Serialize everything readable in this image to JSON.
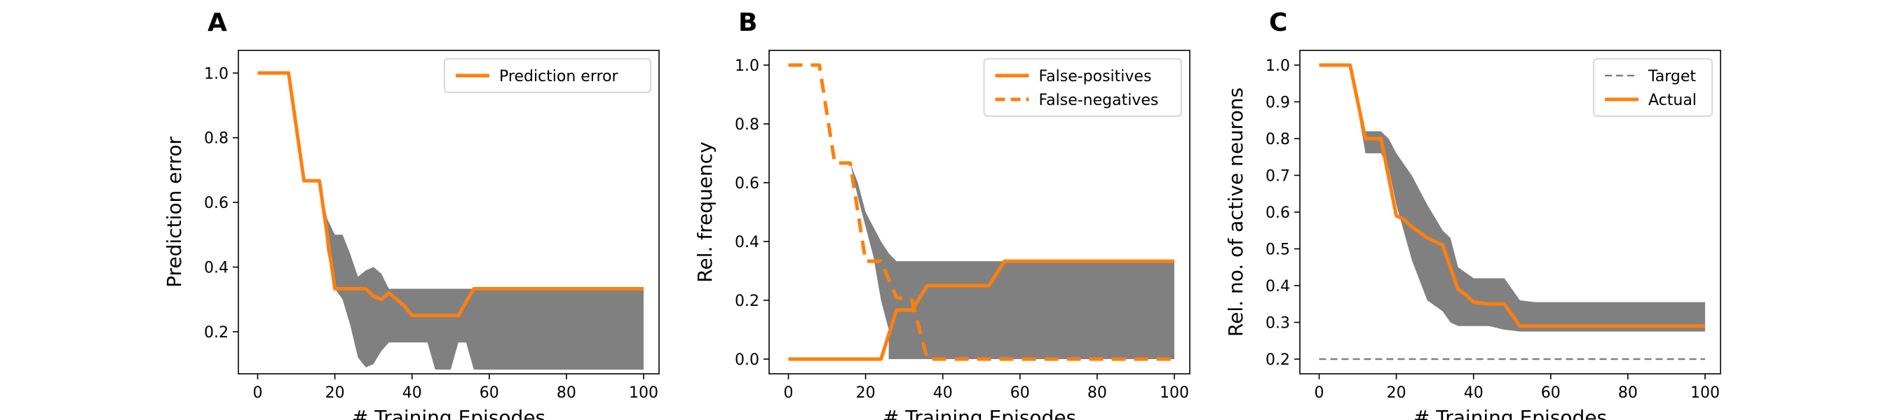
{
  "colors": {
    "series": "#ff7f0e",
    "band": "#808080",
    "target": "#808080",
    "axis": "#000000"
  },
  "chart_data": [
    {
      "type": "line",
      "panel_label": "A",
      "xlabel": "# Training Episodes",
      "ylabel": "Prediction error",
      "xlim": [
        -5,
        104
      ],
      "ylim": [
        0.07,
        1.07
      ],
      "xticks": [
        0,
        20,
        40,
        60,
        80,
        100
      ],
      "yticks": [
        0.2,
        0.4,
        0.6,
        0.8,
        1.0
      ],
      "ytick_labels": [
        "0.2",
        "0.4",
        "0.6",
        "0.8",
        "1.0"
      ],
      "legend_position": "top-right",
      "bands": [
        {
          "x": [
            16,
            18,
            20,
            22,
            24,
            26,
            28,
            30,
            32,
            34,
            36,
            38,
            40,
            44,
            46,
            50,
            52,
            54,
            56,
            60,
            100
          ],
          "upper": [
            0.667,
            0.55,
            0.5,
            0.5,
            0.44,
            0.37,
            0.39,
            0.4,
            0.38,
            0.333,
            0.333,
            0.333,
            0.333,
            0.333,
            0.333,
            0.333,
            0.333,
            0.333,
            0.333,
            0.333,
            0.333
          ],
          "lower": [
            0.667,
            0.45,
            0.333,
            0.3,
            0.22,
            0.12,
            0.09,
            0.1,
            0.14,
            0.167,
            0.167,
            0.167,
            0.167,
            0.167,
            0.083,
            0.083,
            0.167,
            0.167,
            0.083,
            0.083,
            0.083
          ]
        }
      ],
      "series": [
        {
          "name": "Prediction error",
          "dash": "solid",
          "x": [
            0,
            8,
            12,
            16,
            20,
            28,
            30,
            32,
            34,
            36,
            38,
            40,
            52,
            56,
            100
          ],
          "y": [
            1.0,
            1.0,
            0.667,
            0.667,
            0.333,
            0.333,
            0.31,
            0.3,
            0.32,
            0.3,
            0.28,
            0.25,
            0.25,
            0.333,
            0.333
          ]
        }
      ]
    },
    {
      "type": "line",
      "panel_label": "B",
      "xlabel": "# Training Episodes",
      "ylabel": "Rel. frequency",
      "xlim": [
        -5,
        104
      ],
      "ylim": [
        -0.05,
        1.05
      ],
      "xticks": [
        0,
        20,
        40,
        60,
        80,
        100
      ],
      "yticks": [
        0.0,
        0.2,
        0.4,
        0.6,
        0.8,
        1.0
      ],
      "ytick_labels": [
        "0.0",
        "0.2",
        "0.4",
        "0.6",
        "0.8",
        "1.0"
      ],
      "legend_position": "top-right",
      "bands": [
        {
          "x": [
            16,
            18,
            20,
            22,
            24,
            26,
            28,
            30,
            32,
            34,
            36,
            38,
            40,
            44,
            46,
            50,
            52,
            54,
            56,
            60,
            100
          ],
          "upper": [
            0.667,
            0.6,
            0.5,
            0.45,
            0.4,
            0.36,
            0.333,
            0.333,
            0.333,
            0.333,
            0.333,
            0.333,
            0.333,
            0.333,
            0.333,
            0.333,
            0.333,
            0.333,
            0.333,
            0.333,
            0.333
          ],
          "lower": [
            0.667,
            0.55,
            0.45,
            0.35,
            0.2,
            0.1,
            0.0,
            0.0,
            0.0,
            0.0,
            0.0,
            0.0,
            0.0,
            0.0,
            0.0,
            0.0,
            0.0,
            0.0,
            0.0,
            0.0,
            0.0
          ]
        },
        {
          "x": [
            26,
            28,
            32,
            36,
            38,
            40,
            44,
            46,
            50,
            52,
            54,
            56,
            60,
            100
          ],
          "upper": [
            0.1,
            0.167,
            0.167,
            0.2,
            0.22,
            0.25,
            0.25,
            0.25,
            0.25,
            0.28,
            0.31,
            0.333,
            0.333,
            0.333
          ],
          "lower": [
            0.0,
            0.0,
            0.0,
            0.0,
            0.05,
            0.08,
            0.08,
            0.08,
            0.08,
            0.12,
            0.167,
            0.167,
            0.08,
            0.08
          ]
        }
      ],
      "series": [
        {
          "name": "False-positives",
          "dash": "solid",
          "x": [
            0,
            24,
            28,
            32,
            36,
            40,
            52,
            56,
            100
          ],
          "y": [
            0.0,
            0.0,
            0.167,
            0.167,
            0.25,
            0.25,
            0.25,
            0.333,
            0.333
          ]
        },
        {
          "name": "False-negatives",
          "dash": "dashed",
          "x": [
            0,
            8,
            12,
            16,
            20,
            24,
            28,
            32,
            36,
            38,
            100
          ],
          "y": [
            1.0,
            1.0,
            0.667,
            0.667,
            0.333,
            0.333,
            0.21,
            0.2,
            0.0,
            0.0,
            0.0
          ]
        }
      ]
    },
    {
      "type": "line",
      "panel_label": "C",
      "xlabel": "# Training Episodes",
      "ylabel": "Rel. no. of active neurons",
      "xlim": [
        -5,
        104
      ],
      "ylim": [
        0.16,
        1.04
      ],
      "xticks": [
        0,
        20,
        40,
        60,
        80,
        100
      ],
      "yticks": [
        0.2,
        0.3,
        0.4,
        0.5,
        0.6,
        0.7,
        0.8,
        0.9,
        1.0
      ],
      "ytick_labels": [
        "0.2",
        "0.3",
        "0.4",
        "0.5",
        "0.6",
        "0.7",
        "0.8",
        "0.9",
        "1.0"
      ],
      "legend_position": "top-right",
      "bands": [
        {
          "x": [
            8,
            12,
            16,
            18,
            20,
            24,
            28,
            32,
            34,
            36,
            40,
            44,
            48,
            52,
            56,
            60,
            100
          ],
          "upper": [
            1.0,
            0.82,
            0.82,
            0.8,
            0.76,
            0.7,
            0.62,
            0.55,
            0.53,
            0.45,
            0.42,
            0.42,
            0.42,
            0.36,
            0.355,
            0.355,
            0.355
          ],
          "lower": [
            1.0,
            0.76,
            0.76,
            0.72,
            0.62,
            0.47,
            0.36,
            0.33,
            0.3,
            0.29,
            0.29,
            0.29,
            0.28,
            0.275,
            0.275,
            0.275,
            0.275
          ]
        }
      ],
      "series": [
        {
          "name": "Target",
          "dash": "dashed-thin",
          "x": [
            0,
            100
          ],
          "y": [
            0.2,
            0.2
          ]
        },
        {
          "name": "Actual",
          "dash": "solid",
          "x": [
            0,
            8,
            12,
            16,
            20,
            22,
            24,
            28,
            32,
            36,
            38,
            40,
            44,
            48,
            52,
            100
          ],
          "y": [
            1.0,
            1.0,
            0.8,
            0.8,
            0.59,
            0.58,
            0.56,
            0.53,
            0.51,
            0.39,
            0.375,
            0.355,
            0.35,
            0.35,
            0.29,
            0.29
          ]
        }
      ]
    }
  ]
}
